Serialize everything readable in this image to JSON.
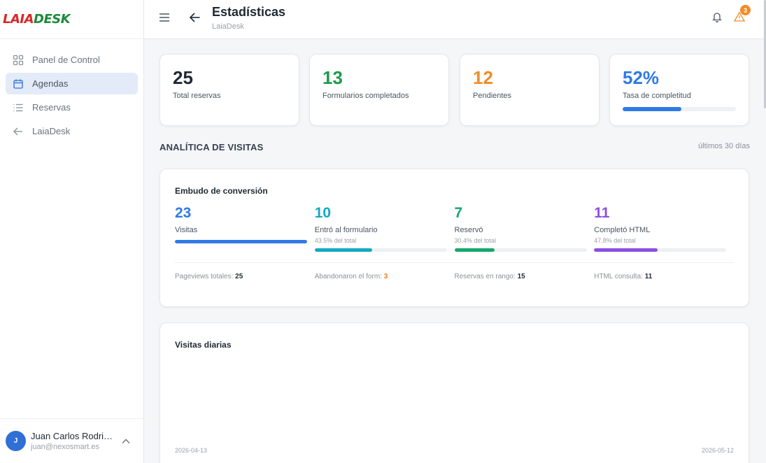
{
  "brand": {
    "logo_part1": "LAIA",
    "logo_part2": "DESK"
  },
  "sidebar": {
    "items": [
      {
        "label": "Panel de Control",
        "icon": "grid-icon"
      },
      {
        "label": "Agendas",
        "icon": "calendar-icon"
      },
      {
        "label": "Reservas",
        "icon": "list-icon"
      },
      {
        "label": "LaiaDesk",
        "icon": "arrow-left-icon"
      }
    ],
    "active_index": 1
  },
  "user": {
    "initial": "J",
    "name": "Juan Carlos Rodrig...",
    "email": "juan@nexosmart.es"
  },
  "header": {
    "title": "Estadísticas",
    "subtitle": "LaiaDesk",
    "warning_count": "3"
  },
  "stats": [
    {
      "value": "25",
      "label": "Total reservas",
      "color": "#1f2933"
    },
    {
      "value": "13",
      "label": "Formularios completados",
      "color": "#1e9a4c"
    },
    {
      "value": "12",
      "label": "Pendientes",
      "color": "#f28c28"
    },
    {
      "value": "52%",
      "label": "Tasa de completitud",
      "color": "#2f7ae5",
      "progress": 0.52
    }
  ],
  "analytics": {
    "title": "ANALÍTICA DE VISITAS",
    "range": "últimos 30 días",
    "funnel": {
      "title": "Embudo de conversión",
      "steps": [
        {
          "value": "23",
          "label": "Visitas",
          "pct": "",
          "fill": 1.0,
          "color": "#2f7ae5"
        },
        {
          "value": "10",
          "label": "Entró al formulario",
          "pct": "43.5% del total",
          "fill": 0.435,
          "color": "#13a9c4"
        },
        {
          "value": "7",
          "label": "Reservó",
          "pct": "30.4% del total",
          "fill": 0.304,
          "color": "#14a76c"
        },
        {
          "value": "11",
          "label": "Completó HTML",
          "pct": "47.8% del total",
          "fill": 0.478,
          "color": "#8b4fe0"
        }
      ],
      "totals": [
        {
          "label": "Pageviews totales:",
          "value": "25"
        },
        {
          "label": "Abandonaron el form:",
          "value": "3"
        },
        {
          "label": "Reservas en rango:",
          "value": "15"
        },
        {
          "label": "HTML consulta:",
          "value": "11"
        }
      ]
    },
    "daily": {
      "title": "Visitas diarias",
      "start_date": "2026-04-13",
      "end_date": "2026-05-12"
    }
  }
}
